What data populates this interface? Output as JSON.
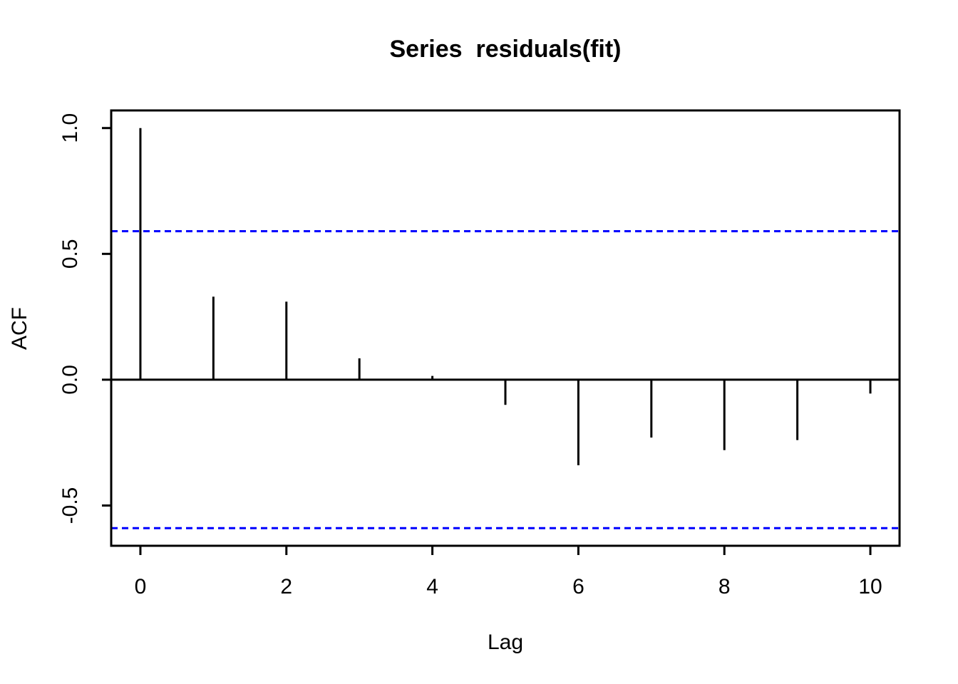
{
  "page": {
    "background": "#FFFFFF"
  },
  "chart_data": {
    "type": "bar",
    "variant": "acf-stick-plot",
    "title": "Series  residuals(fit)",
    "xlabel": "Lag",
    "ylabel": "ACF",
    "x": [
      0,
      1,
      2,
      3,
      4,
      5,
      6,
      7,
      8,
      9,
      10
    ],
    "values": [
      1.0,
      0.33,
      0.31,
      0.085,
      0.015,
      -0.1,
      -0.34,
      -0.23,
      -0.28,
      -0.24,
      -0.055
    ],
    "xlim": [
      -0.4,
      10.4
    ],
    "ylim": [
      -0.66,
      1.07
    ],
    "x_tick_values": [
      0,
      2,
      4,
      6,
      8,
      10
    ],
    "x_tick_labels": [
      "0",
      "2",
      "4",
      "6",
      "8",
      "10"
    ],
    "y_tick_values": [
      1.0,
      0.5,
      0.0,
      -0.5
    ],
    "y_tick_labels": [
      "1.0",
      "0.5",
      "0.0",
      "-0.5"
    ],
    "confidence_interval": {
      "upper": 0.59,
      "lower": -0.59,
      "line_style": "dashed",
      "color": "#0000FF"
    },
    "zero_line": true,
    "grid": false,
    "legend": "none",
    "bar_color": "#000000",
    "axis_color": "#000000",
    "background": "#FFFFFF"
  }
}
